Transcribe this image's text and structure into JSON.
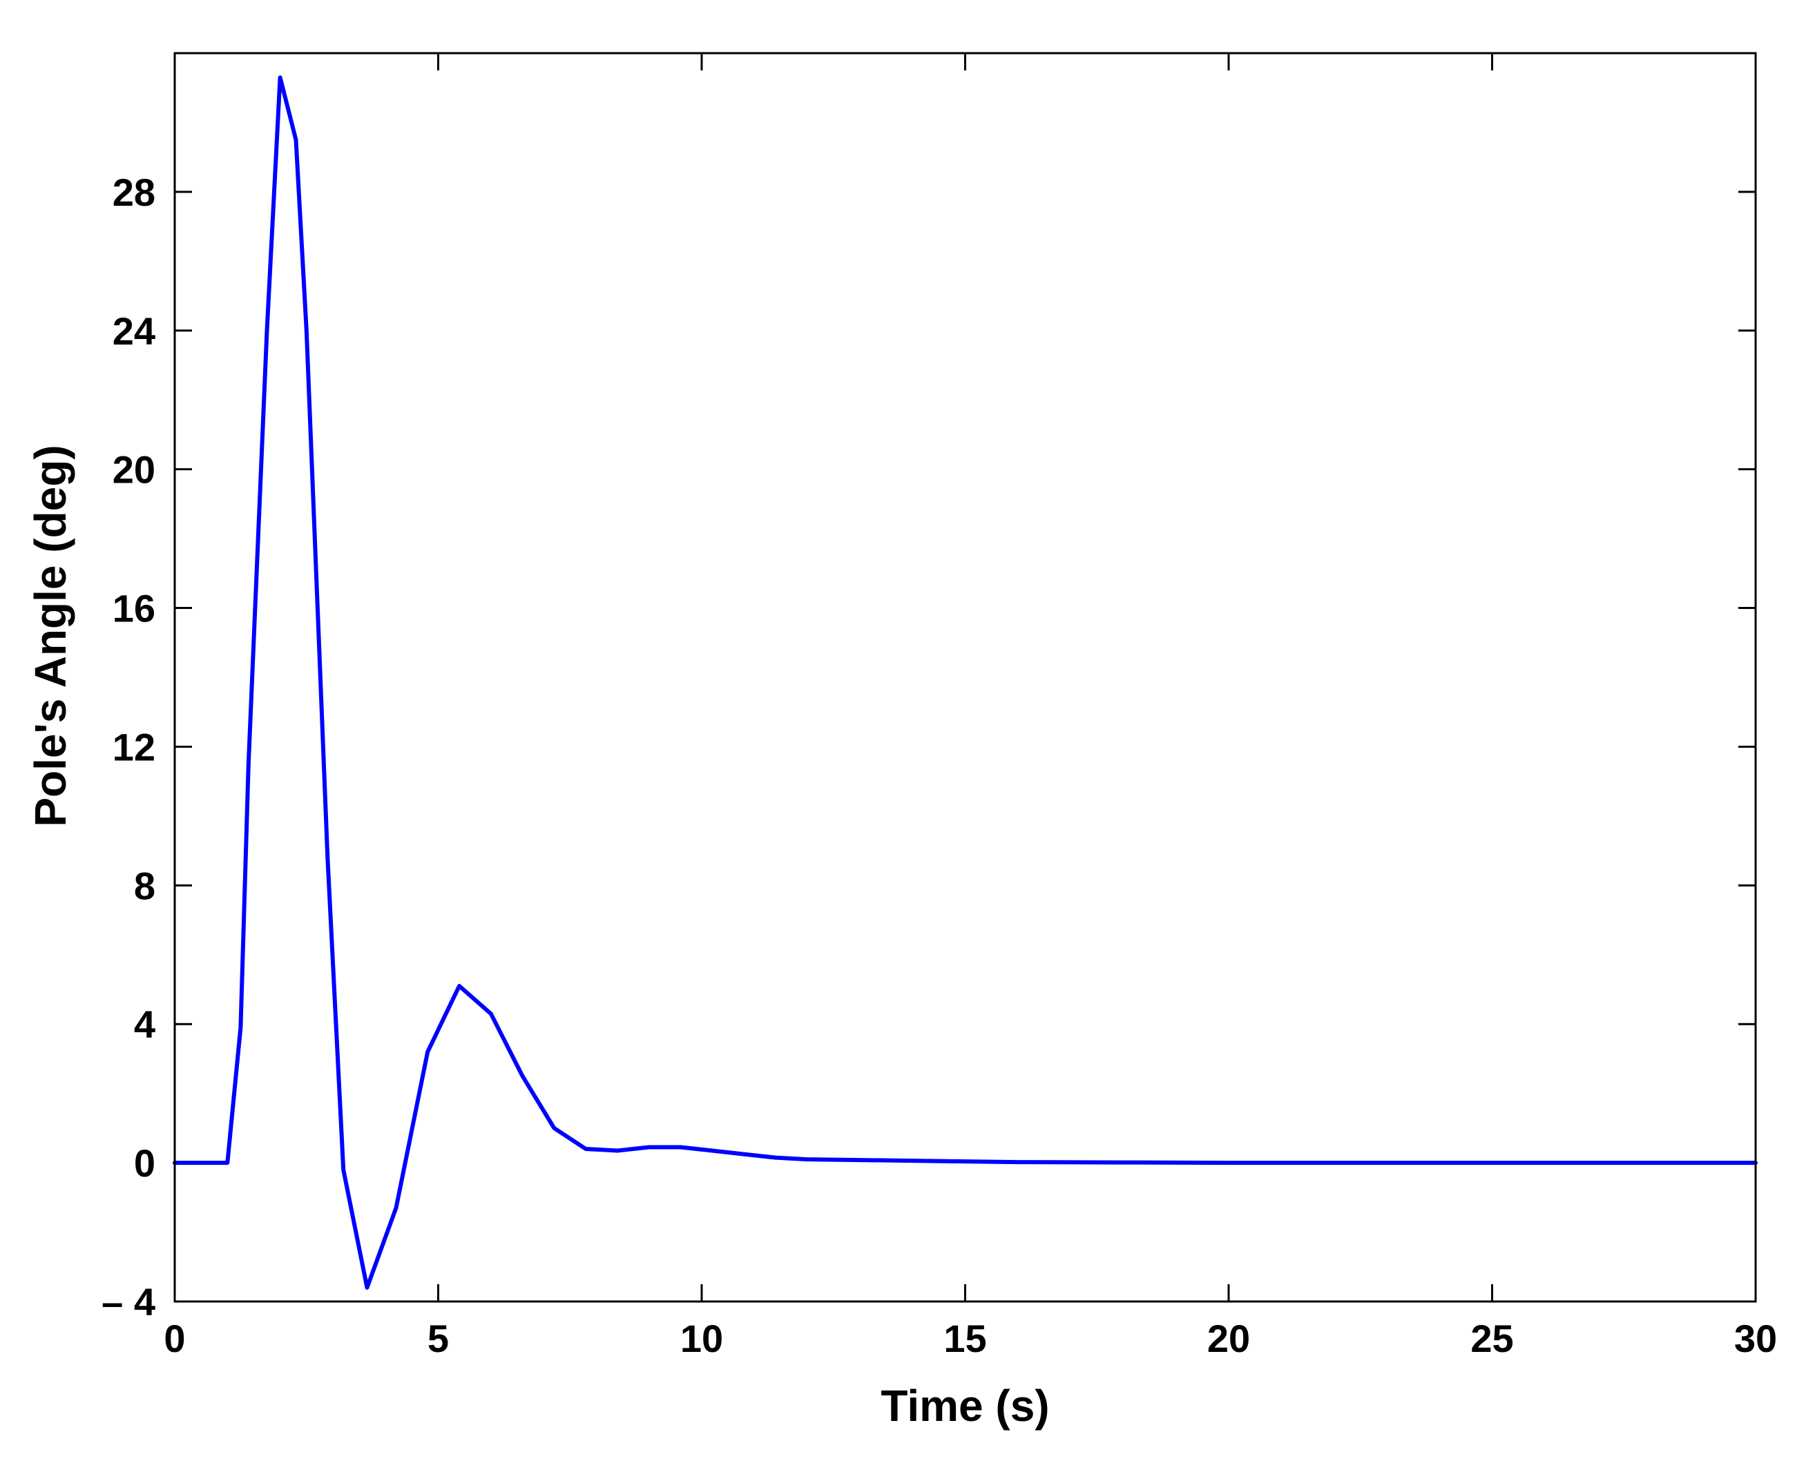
{
  "chart_data": {
    "type": "line",
    "xlabel": "Time (s)",
    "ylabel": "Pole's Angle (deg)",
    "xlim": [
      0,
      30
    ],
    "ylim": [
      -4,
      32
    ],
    "xticks": [
      0,
      5,
      10,
      15,
      20,
      25,
      30
    ],
    "xtick_labels": [
      "0",
      "5",
      "10",
      "15",
      "20",
      "25",
      "30"
    ],
    "yticks": [
      -4,
      0,
      4,
      8,
      12,
      16,
      20,
      24,
      28
    ],
    "ytick_labels": [
      "– 4",
      "0",
      "4",
      "8",
      "12",
      "16",
      "20",
      "24",
      "28"
    ],
    "grid": false,
    "line_color": "#0000ff",
    "series": [
      {
        "x": [
          0,
          1.0,
          1.25,
          1.4,
          1.75,
          2.0,
          2.3,
          2.5,
          2.9,
          3.2,
          3.65,
          4.2,
          4.8,
          5.4,
          6.0,
          6.6,
          7.2,
          7.8,
          8.4,
          9.0,
          9.6,
          10.2,
          10.8,
          11.4,
          12.0,
          13.0,
          14.0,
          15.0,
          16.0,
          18.0,
          20.0,
          25.0,
          30.0
        ],
        "y": [
          0,
          0,
          3.9,
          11.5,
          24.0,
          31.3,
          29.5,
          24.0,
          8.8,
          -0.2,
          -3.6,
          -1.3,
          3.2,
          5.1,
          4.3,
          2.5,
          1.0,
          0.4,
          0.35,
          0.45,
          0.45,
          0.35,
          0.25,
          0.15,
          0.1,
          0.08,
          0.06,
          0.04,
          0.02,
          0.01,
          0,
          0,
          0
        ]
      }
    ]
  }
}
